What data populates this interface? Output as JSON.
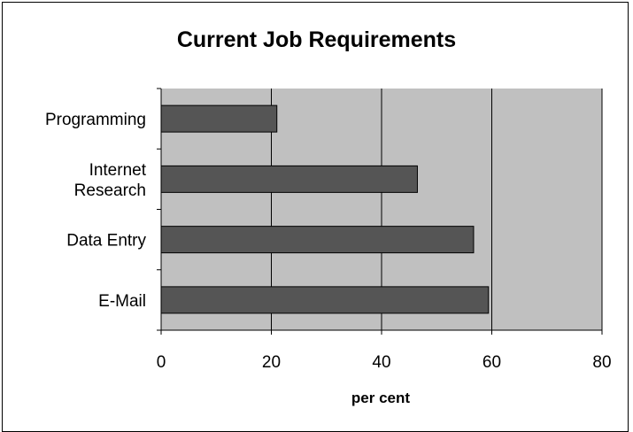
{
  "chart_data": {
    "type": "bar",
    "orientation": "horizontal",
    "title": "Current Job Requirements",
    "xlabel": "per cent",
    "ylabel": "",
    "categories": [
      "Programming",
      "Internet Research",
      "Data Entry",
      "E-Mail"
    ],
    "category_lines": [
      [
        "Programming"
      ],
      [
        "Internet",
        "Research"
      ],
      [
        "Data Entry"
      ],
      [
        "E-Mail"
      ]
    ],
    "values": [
      21,
      46.5,
      56.7,
      59.4
    ],
    "xlim": [
      0,
      80
    ],
    "xticks": [
      0,
      20,
      40,
      60,
      80
    ],
    "grid": true,
    "legend": "none",
    "colors": {
      "bar": "#555555",
      "plot_area": "#c0c0c0",
      "gridline": "#000000"
    }
  }
}
